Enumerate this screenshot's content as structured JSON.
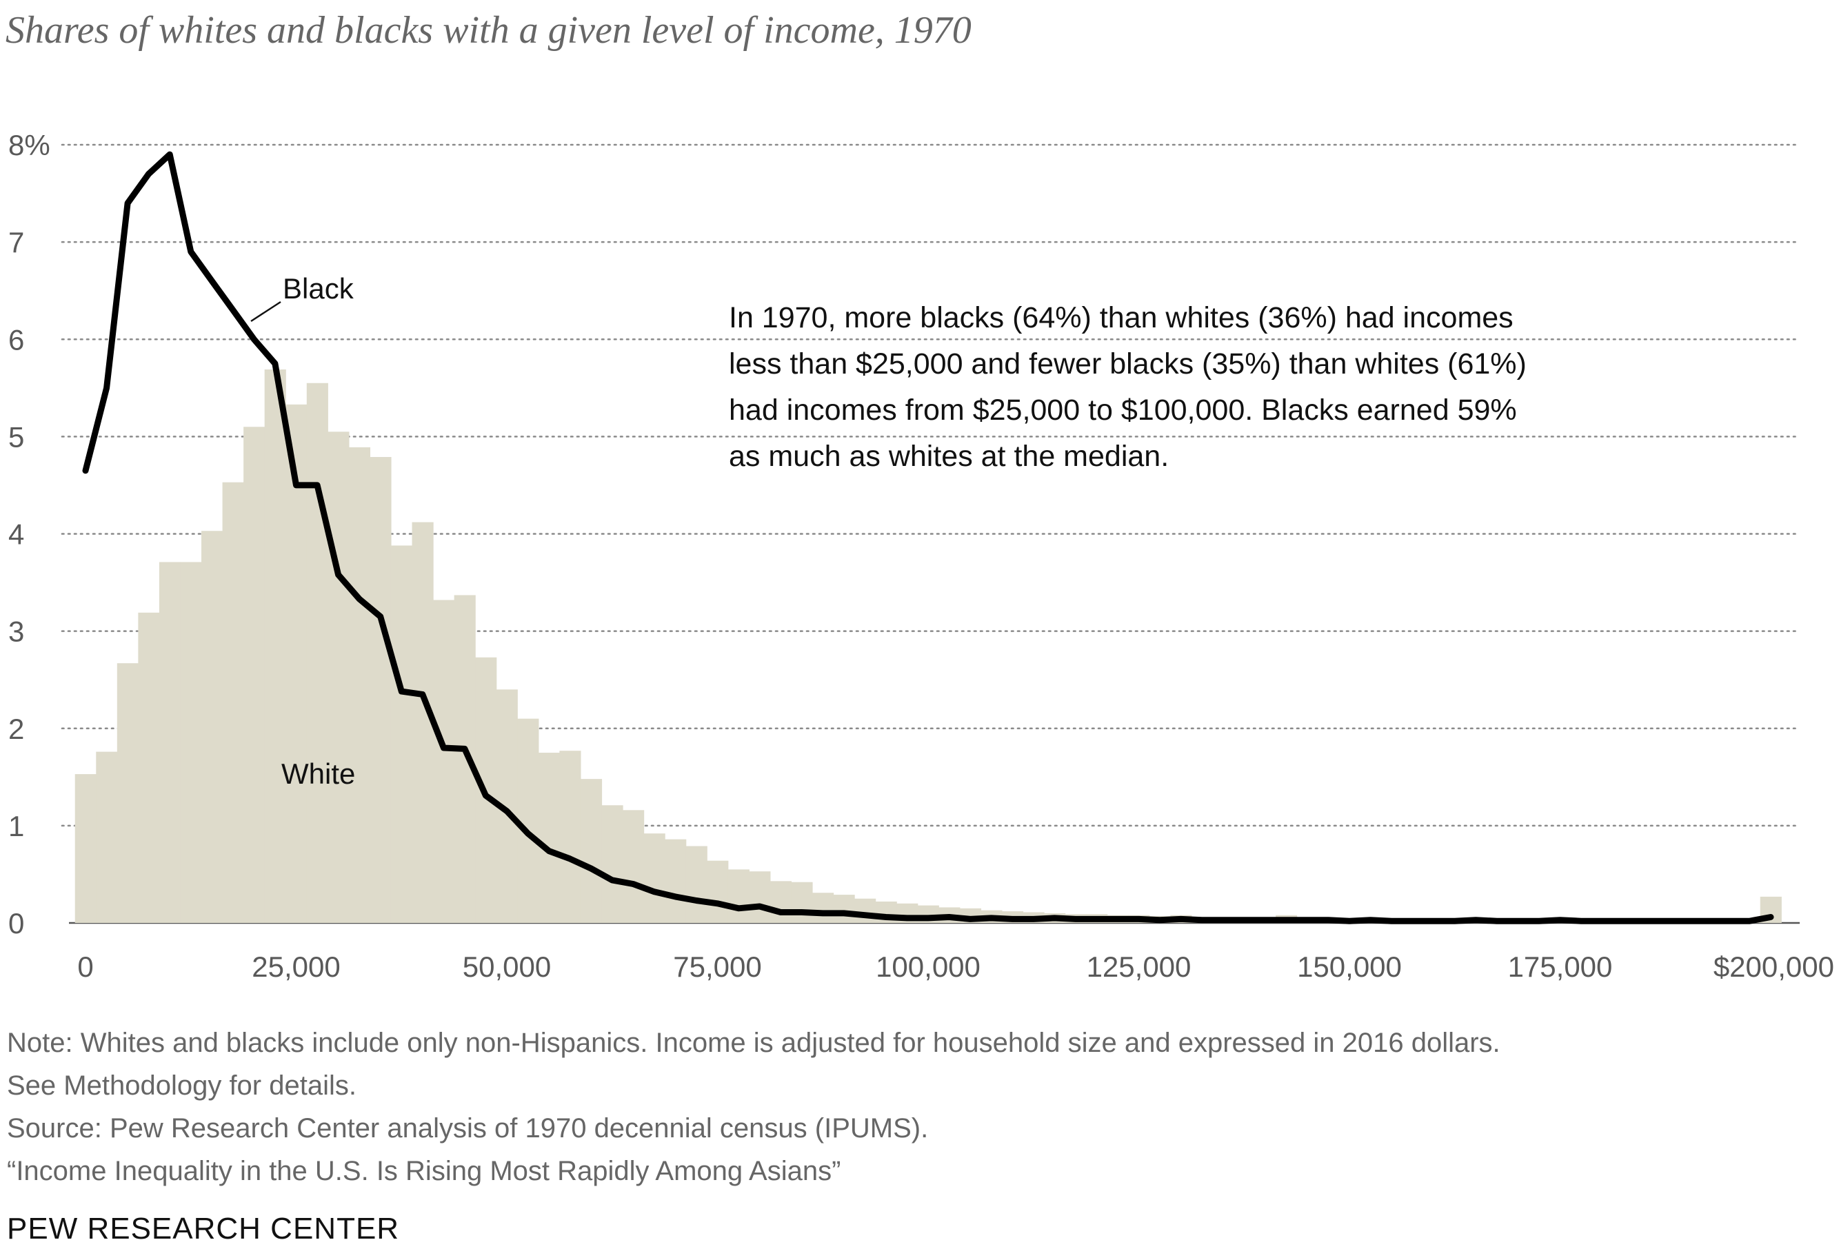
{
  "title": "Shares of whites and blacks with a given level of income, 1970",
  "annotation": {
    "lines": [
      "In 1970, more blacks (64%) than whites (36%) had incomes",
      "less than $25,000 and fewer blacks (35%) than whites (61%)",
      "had incomes from $25,000 to $100,000. Blacks earned 59%",
      "as much as whites at the median."
    ]
  },
  "notes": {
    "note_line1": "Note: Whites and blacks include only non-Hispanics. Income is adjusted for household size and expressed in 2016 dollars.",
    "note_line2": "See Methodology for details.",
    "source": "Source: Pew Research Center analysis of 1970 decennial census (IPUMS).",
    "report": "“Income Inequality in the U.S. Is Rising Most Rapidly Among Asians”"
  },
  "brand": "PEW RESEARCH CENTER",
  "chart_data": {
    "type": "area",
    "title": "Shares of whites and blacks with a given level of income, 1970",
    "xlabel": "",
    "ylabel": "",
    "xlim": [
      0,
      200000
    ],
    "ylim": [
      0,
      8
    ],
    "grid": true,
    "bin_width": 2500,
    "y_ticks": [
      {
        "value": 8,
        "label": "8%"
      },
      {
        "value": 7,
        "label": "7"
      },
      {
        "value": 6,
        "label": "6"
      },
      {
        "value": 5,
        "label": "5"
      },
      {
        "value": 4,
        "label": "4"
      },
      {
        "value": 3,
        "label": "3"
      },
      {
        "value": 2,
        "label": "2"
      },
      {
        "value": 1,
        "label": "1"
      },
      {
        "value": 0,
        "label": "0"
      }
    ],
    "x_ticks": [
      {
        "value": 0,
        "label": "0"
      },
      {
        "value": 25000,
        "label": "25,000"
      },
      {
        "value": 50000,
        "label": "50,000"
      },
      {
        "value": 75000,
        "label": "75,000"
      },
      {
        "value": 100000,
        "label": "100,000"
      },
      {
        "value": 125000,
        "label": "125,000"
      },
      {
        "value": 150000,
        "label": "150,000"
      },
      {
        "value": 175000,
        "label": "175,000"
      },
      {
        "value": 200000,
        "label": "$200,000"
      }
    ],
    "series": [
      {
        "name": "White",
        "type": "bar",
        "color": "#dedbcb",
        "label": "White",
        "x": [
          0,
          2500,
          5000,
          7500,
          10000,
          12500,
          15000,
          17500,
          20000,
          22500,
          25000,
          27500,
          30000,
          32500,
          35000,
          37500,
          40000,
          42500,
          45000,
          47500,
          50000,
          52500,
          55000,
          57500,
          60000,
          62500,
          65000,
          67500,
          70000,
          72500,
          75000,
          77500,
          80000,
          82500,
          85000,
          87500,
          90000,
          92500,
          95000,
          97500,
          100000,
          102500,
          105000,
          107500,
          110000,
          112500,
          115000,
          117500,
          120000,
          122500,
          125000,
          127500,
          130000,
          132500,
          135000,
          137500,
          140000,
          142500,
          145000,
          147500,
          150000,
          152500,
          155000,
          157500,
          160000,
          162500,
          165000,
          167500,
          170000,
          172500,
          175000,
          177500,
          180000,
          182500,
          185000,
          187500,
          190000,
          192500,
          195000,
          197500,
          200000
        ],
        "values": [
          1.53,
          1.76,
          2.67,
          3.19,
          3.71,
          3.71,
          4.03,
          4.53,
          5.1,
          5.69,
          5.33,
          5.55,
          5.05,
          4.89,
          4.79,
          3.88,
          4.12,
          3.32,
          3.37,
          2.73,
          2.4,
          2.1,
          1.75,
          1.77,
          1.48,
          1.21,
          1.16,
          0.92,
          0.86,
          0.79,
          0.64,
          0.55,
          0.53,
          0.43,
          0.42,
          0.31,
          0.29,
          0.25,
          0.22,
          0.2,
          0.18,
          0.16,
          0.15,
          0.13,
          0.12,
          0.11,
          0.1,
          0.09,
          0.09,
          0.08,
          0.08,
          0.07,
          0.08,
          0.06,
          0.06,
          0.05,
          0.06,
          0.08,
          0.05,
          0.05,
          0.04,
          0.04,
          0.04,
          0.04,
          0.04,
          0.04,
          0.04,
          0.04,
          0.03,
          0.04,
          0.03,
          0.03,
          0.03,
          0.03,
          0.03,
          0.03,
          0.03,
          0.03,
          0.03,
          0.03,
          0.27
        ]
      },
      {
        "name": "Black",
        "type": "line",
        "color": "#000000",
        "label": "Black",
        "x": [
          0,
          2500,
          5000,
          7500,
          10000,
          12500,
          15000,
          17500,
          20000,
          22500,
          25000,
          27500,
          30000,
          32500,
          35000,
          37500,
          40000,
          42500,
          45000,
          47500,
          50000,
          52500,
          55000,
          57500,
          60000,
          62500,
          65000,
          67500,
          70000,
          72500,
          75000,
          77500,
          80000,
          82500,
          85000,
          87500,
          90000,
          92500,
          95000,
          97500,
          100000,
          102500,
          105000,
          107500,
          110000,
          112500,
          115000,
          117500,
          120000,
          122500,
          125000,
          127500,
          130000,
          132500,
          135000,
          137500,
          140000,
          142500,
          145000,
          147500,
          150000,
          152500,
          155000,
          157500,
          160000,
          162500,
          165000,
          167500,
          170000,
          172500,
          175000,
          177500,
          180000,
          182500,
          185000,
          187500,
          190000,
          192500,
          195000,
          197500,
          200000
        ],
        "values": [
          4.65,
          5.5,
          7.4,
          7.7,
          7.9,
          6.9,
          6.6,
          6.3,
          6.0,
          5.75,
          4.5,
          4.5,
          3.58,
          3.33,
          3.15,
          2.38,
          2.35,
          1.8,
          1.79,
          1.31,
          1.15,
          0.92,
          0.74,
          0.66,
          0.56,
          0.44,
          0.4,
          0.32,
          0.27,
          0.23,
          0.2,
          0.15,
          0.17,
          0.11,
          0.11,
          0.1,
          0.1,
          0.08,
          0.06,
          0.05,
          0.05,
          0.06,
          0.04,
          0.05,
          0.04,
          0.04,
          0.05,
          0.04,
          0.04,
          0.04,
          0.04,
          0.03,
          0.04,
          0.03,
          0.03,
          0.03,
          0.03,
          0.03,
          0.03,
          0.03,
          0.02,
          0.03,
          0.02,
          0.02,
          0.02,
          0.02,
          0.03,
          0.02,
          0.02,
          0.02,
          0.03,
          0.02,
          0.02,
          0.02,
          0.02,
          0.02,
          0.02,
          0.02,
          0.02,
          0.02,
          0.06
        ]
      }
    ]
  }
}
